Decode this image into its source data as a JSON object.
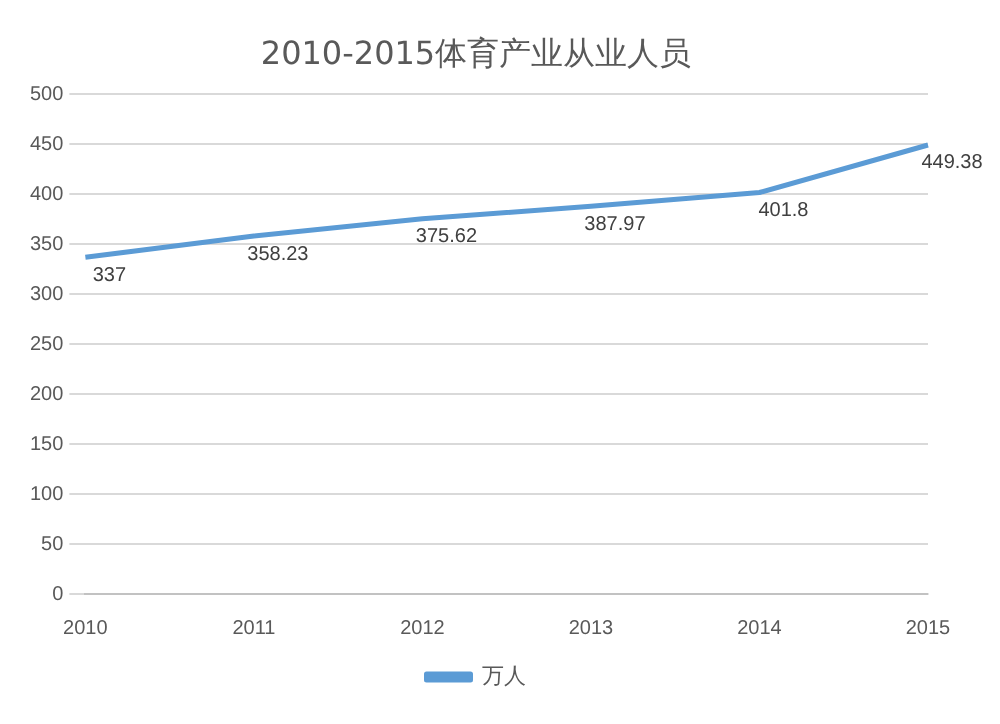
{
  "chart_data": {
    "type": "line",
    "title": "2010-2015体育产业从业人员",
    "categories": [
      "2010",
      "2011",
      "2012",
      "2013",
      "2014",
      "2015"
    ],
    "series": [
      {
        "name": "万人",
        "color": "#5b9bd5",
        "values": [
          337,
          358.23,
          375.62,
          387.97,
          401.8,
          449.38
        ]
      }
    ],
    "ylim": [
      0,
      500
    ],
    "yticks": [
      0,
      50,
      100,
      150,
      200,
      250,
      300,
      350,
      400,
      450,
      500
    ],
    "grid": "y",
    "legend": "bottom",
    "marker": "none",
    "line_style": "solid",
    "data_labels": true
  }
}
